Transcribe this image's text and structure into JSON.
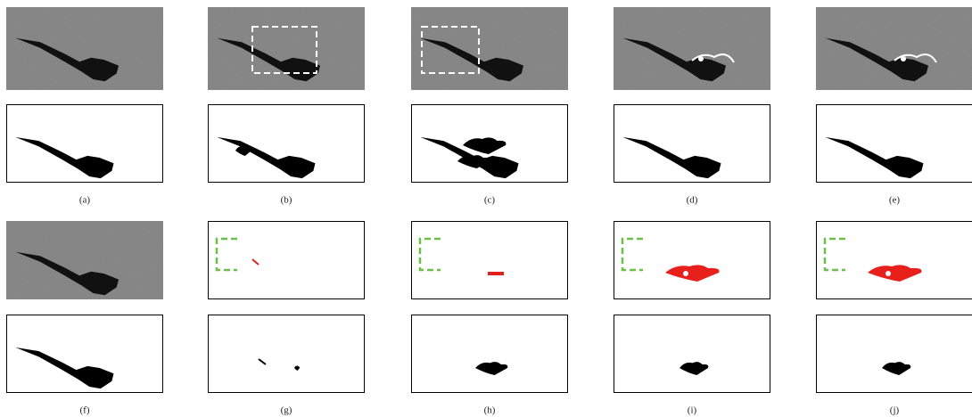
{
  "captions": [
    "(a)",
    "(b)",
    "(c)",
    "(d)",
    "(e)",
    "(f)",
    "(g)",
    "(h)",
    "(i)",
    "(j)"
  ]
}
